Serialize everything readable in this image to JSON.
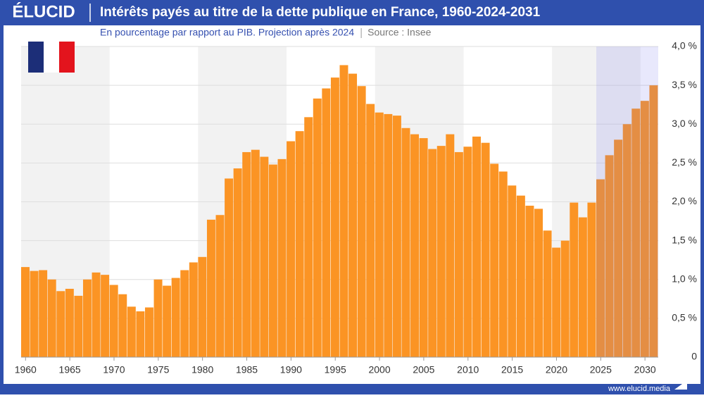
{
  "brand": "ÉLUCID",
  "url": "www.elucid.media",
  "chart_data": {
    "type": "bar",
    "title": "Intérêts payés au titre de la dette publique en France, 1960-2024-2031",
    "subtitle": "En pourcentage par rapport au PIB. Projection après 2024",
    "source": "Source : Insee",
    "color": "#fb9424",
    "projection_start": 2025,
    "projection_color": "rgba(110,110,235,0.16)",
    "x": [
      1960,
      1961,
      1962,
      1963,
      1964,
      1965,
      1966,
      1967,
      1968,
      1969,
      1970,
      1971,
      1972,
      1973,
      1974,
      1975,
      1976,
      1977,
      1978,
      1979,
      1980,
      1981,
      1982,
      1983,
      1984,
      1985,
      1986,
      1987,
      1988,
      1989,
      1990,
      1991,
      1992,
      1993,
      1994,
      1995,
      1996,
      1997,
      1998,
      1999,
      2000,
      2001,
      2002,
      2003,
      2004,
      2005,
      2006,
      2007,
      2008,
      2009,
      2010,
      2011,
      2012,
      2013,
      2014,
      2015,
      2016,
      2017,
      2018,
      2019,
      2020,
      2021,
      2022,
      2023,
      2024,
      2025,
      2026,
      2027,
      2028,
      2029,
      2030,
      2031
    ],
    "values": [
      1.16,
      1.11,
      1.12,
      1.0,
      0.85,
      0.88,
      0.79,
      1.0,
      1.09,
      1.06,
      0.93,
      0.81,
      0.65,
      0.59,
      0.64,
      1.0,
      0.92,
      1.02,
      1.12,
      1.22,
      1.29,
      1.77,
      1.83,
      2.3,
      2.43,
      2.64,
      2.67,
      2.58,
      2.48,
      2.55,
      2.78,
      2.91,
      3.09,
      3.33,
      3.46,
      3.6,
      3.76,
      3.65,
      3.49,
      3.26,
      3.15,
      3.13,
      3.11,
      2.95,
      2.87,
      2.82,
      2.68,
      2.72,
      2.87,
      2.64,
      2.71,
      2.84,
      2.76,
      2.49,
      2.39,
      2.21,
      2.08,
      1.95,
      1.91,
      1.63,
      1.41,
      1.5,
      1.99,
      1.8,
      1.99,
      2.29,
      2.6,
      2.8,
      3.0,
      3.2,
      3.3,
      3.5
    ],
    "xlim": [
      1959.5,
      2031.5
    ],
    "xticks": [
      1960,
      1965,
      1970,
      1975,
      1980,
      1985,
      1990,
      1995,
      2000,
      2005,
      2010,
      2015,
      2020,
      2025,
      2030
    ],
    "ylim": [
      0,
      4
    ],
    "yticks": [
      0,
      {
        "value": 0.5,
        "label": "0,5 %"
      },
      {
        "value": 1,
        "label": "1,0 %"
      },
      {
        "value": 1.5,
        "label": "1,5 %"
      },
      {
        "value": 2,
        "label": "2,0 %"
      },
      {
        "value": 2.5,
        "label": "2,5 %"
      },
      {
        "value": 3,
        "label": "3,0 %"
      },
      {
        "value": 3.5,
        "label": "3,5 %"
      },
      {
        "value": 4,
        "label": "4,0 %"
      }
    ],
    "grid": true
  }
}
